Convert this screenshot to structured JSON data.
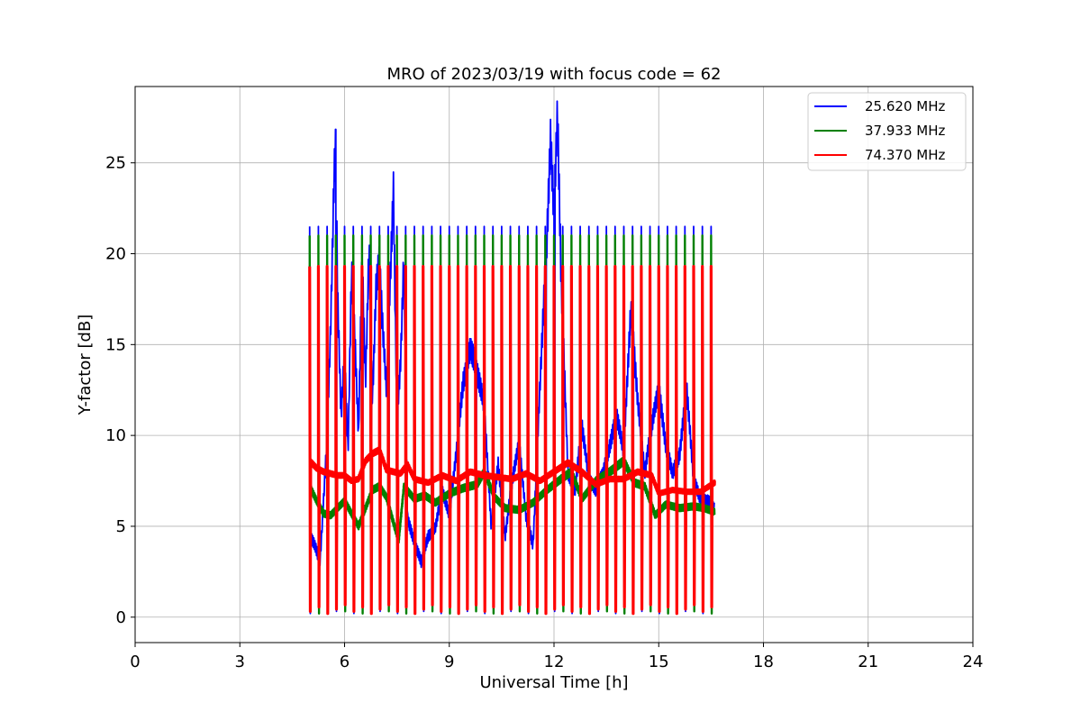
{
  "chart_data": {
    "type": "line",
    "title": "MRO of 2023/03/19 with focus code = 62",
    "xlabel": "Universal Time [h]",
    "ylabel": "Y-factor [dB]",
    "xlim": [
      0,
      24
    ],
    "ylim": [
      -1.4,
      29.2
    ],
    "xticks": [
      0,
      3,
      6,
      9,
      12,
      15,
      18,
      21,
      24
    ],
    "yticks": [
      0,
      5,
      10,
      15,
      20,
      25
    ],
    "grid": true,
    "legend_position": "top-right",
    "cycle_period_h": 0.25,
    "time_range_h": [
      5.0,
      16.6
    ],
    "series": [
      {
        "name": "25.620 MHz",
        "color": "#0000ff",
        "calibration_peak_db": 21.5,
        "baseline_points": [
          [
            5.0,
            4.5
          ],
          [
            5.1,
            4.1
          ],
          [
            5.2,
            3.6
          ],
          [
            5.3,
            3.0
          ],
          [
            5.4,
            6.5
          ],
          [
            5.5,
            10.0
          ],
          [
            5.6,
            16.0
          ],
          [
            5.7,
            24.5
          ],
          [
            5.75,
            26.0
          ],
          [
            5.8,
            18.0
          ],
          [
            5.9,
            11.0
          ],
          [
            6.0,
            14.5
          ],
          [
            6.1,
            9.0
          ],
          [
            6.2,
            19.0
          ],
          [
            6.3,
            15.0
          ],
          [
            6.4,
            10.0
          ],
          [
            6.5,
            20.0
          ],
          [
            6.6,
            13.0
          ],
          [
            6.7,
            20.5
          ],
          [
            6.8,
            12.0
          ],
          [
            6.9,
            18.0
          ],
          [
            7.0,
            19.5
          ],
          [
            7.1,
            15.5
          ],
          [
            7.2,
            12.5
          ],
          [
            7.3,
            18.0
          ],
          [
            7.4,
            23.5
          ],
          [
            7.5,
            11.0
          ],
          [
            7.6,
            14.0
          ],
          [
            7.7,
            20.0
          ],
          [
            7.8,
            5.5
          ],
          [
            8.0,
            4.0
          ],
          [
            8.2,
            3.0
          ],
          [
            8.4,
            4.5
          ],
          [
            8.6,
            5.0
          ],
          [
            8.8,
            7.0
          ],
          [
            9.0,
            5.5
          ],
          [
            9.2,
            9.0
          ],
          [
            9.4,
            13.0
          ],
          [
            9.6,
            15.0
          ],
          [
            9.8,
            13.5
          ],
          [
            10.0,
            11.5
          ],
          [
            10.2,
            5.0
          ],
          [
            10.4,
            8.5
          ],
          [
            10.6,
            4.5
          ],
          [
            10.8,
            7.5
          ],
          [
            11.0,
            9.5
          ],
          [
            11.2,
            5.5
          ],
          [
            11.4,
            4.0
          ],
          [
            11.6,
            13.0
          ],
          [
            11.8,
            21.0
          ],
          [
            11.9,
            26.0
          ],
          [
            12.0,
            22.0
          ],
          [
            12.1,
            27.5
          ],
          [
            12.2,
            19.0
          ],
          [
            12.4,
            8.0
          ],
          [
            12.6,
            7.0
          ],
          [
            12.8,
            10.5
          ],
          [
            13.0,
            7.5
          ],
          [
            13.2,
            7.0
          ],
          [
            13.4,
            8.0
          ],
          [
            13.6,
            9.5
          ],
          [
            13.8,
            11.0
          ],
          [
            14.0,
            9.0
          ],
          [
            14.2,
            17.0
          ],
          [
            14.4,
            12.0
          ],
          [
            14.6,
            8.0
          ],
          [
            14.8,
            10.5
          ],
          [
            15.0,
            12.5
          ],
          [
            15.2,
            9.5
          ],
          [
            15.4,
            8.0
          ],
          [
            15.6,
            9.0
          ],
          [
            15.8,
            12.5
          ],
          [
            16.0,
            7.5
          ],
          [
            16.2,
            6.5
          ],
          [
            16.4,
            6.5
          ],
          [
            16.6,
            6.0
          ]
        ]
      },
      {
        "name": "37.933 MHz",
        "color": "#008000",
        "calibration_peak_db": 21.0,
        "baseline_points": [
          [
            5.0,
            7.2
          ],
          [
            5.2,
            6.4
          ],
          [
            5.4,
            5.7
          ],
          [
            5.6,
            5.6
          ],
          [
            5.8,
            6.0
          ],
          [
            6.0,
            6.4
          ],
          [
            6.2,
            5.7
          ],
          [
            6.4,
            5.0
          ],
          [
            6.6,
            6.0
          ],
          [
            6.8,
            7.0
          ],
          [
            7.0,
            7.2
          ],
          [
            7.2,
            6.6
          ],
          [
            7.4,
            5.2
          ],
          [
            7.55,
            4.2
          ],
          [
            7.7,
            7.2
          ],
          [
            8.0,
            6.5
          ],
          [
            8.3,
            6.7
          ],
          [
            8.6,
            6.3
          ],
          [
            9.0,
            6.8
          ],
          [
            9.4,
            7.1
          ],
          [
            9.8,
            7.3
          ],
          [
            10.0,
            8.0
          ],
          [
            10.3,
            6.6
          ],
          [
            10.6,
            6.0
          ],
          [
            11.0,
            5.9
          ],
          [
            11.4,
            6.3
          ],
          [
            11.8,
            7.0
          ],
          [
            12.2,
            7.6
          ],
          [
            12.5,
            8.0
          ],
          [
            12.8,
            6.5
          ],
          [
            13.2,
            7.5
          ],
          [
            13.6,
            8.0
          ],
          [
            14.0,
            8.6
          ],
          [
            14.3,
            7.4
          ],
          [
            14.6,
            7.2
          ],
          [
            14.9,
            5.6
          ],
          [
            15.2,
            6.2
          ],
          [
            15.6,
            6.0
          ],
          [
            16.0,
            6.1
          ],
          [
            16.3,
            6.0
          ],
          [
            16.6,
            5.8
          ]
        ]
      },
      {
        "name": "74.370 MHz",
        "color": "#ff0000",
        "calibration_peak_db": 19.3,
        "baseline_points": [
          [
            5.0,
            8.6
          ],
          [
            5.2,
            8.2
          ],
          [
            5.4,
            8.0
          ],
          [
            5.6,
            7.9
          ],
          [
            5.8,
            7.8
          ],
          [
            6.0,
            7.8
          ],
          [
            6.2,
            7.5
          ],
          [
            6.4,
            7.6
          ],
          [
            6.6,
            8.6
          ],
          [
            6.8,
            9.0
          ],
          [
            7.0,
            9.2
          ],
          [
            7.2,
            8.1
          ],
          [
            7.4,
            8.0
          ],
          [
            7.6,
            7.9
          ],
          [
            7.8,
            8.4
          ],
          [
            8.0,
            7.6
          ],
          [
            8.4,
            7.4
          ],
          [
            8.8,
            7.8
          ],
          [
            9.2,
            7.5
          ],
          [
            9.6,
            8.0
          ],
          [
            10.0,
            7.8
          ],
          [
            10.4,
            7.7
          ],
          [
            10.8,
            7.6
          ],
          [
            11.2,
            7.9
          ],
          [
            11.6,
            7.5
          ],
          [
            12.0,
            8.0
          ],
          [
            12.4,
            8.5
          ],
          [
            12.8,
            8.0
          ],
          [
            13.2,
            7.3
          ],
          [
            13.6,
            7.6
          ],
          [
            14.0,
            7.6
          ],
          [
            14.4,
            8.0
          ],
          [
            14.8,
            7.8
          ],
          [
            15.0,
            6.8
          ],
          [
            15.4,
            7.0
          ],
          [
            15.8,
            6.9
          ],
          [
            16.2,
            6.9
          ],
          [
            16.6,
            7.4
          ]
        ]
      }
    ]
  }
}
